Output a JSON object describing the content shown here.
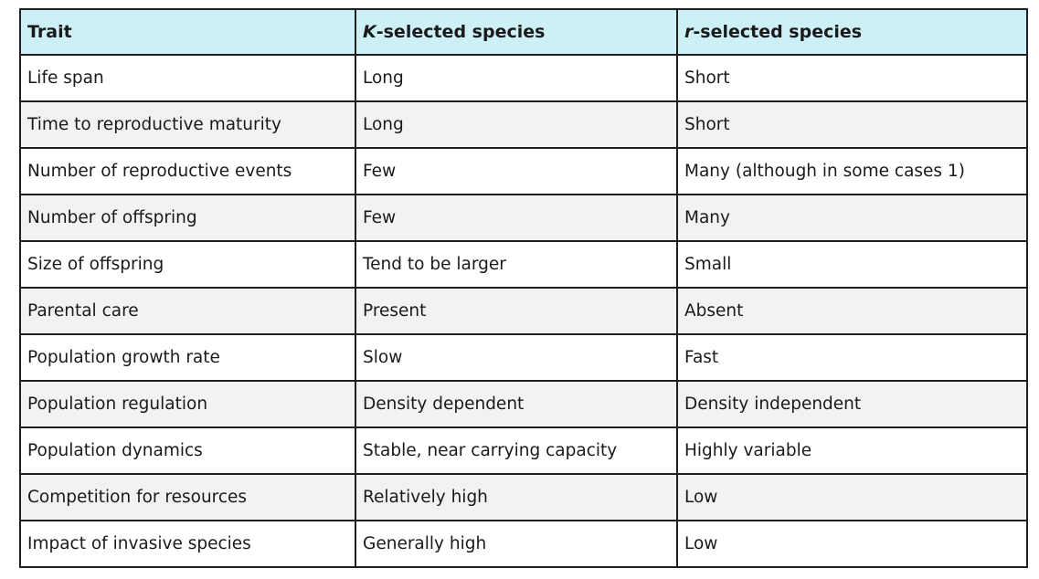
{
  "table": {
    "headers": {
      "trait": "Trait",
      "k_letter": "K",
      "k_rest": "-selected species",
      "r_letter": "r",
      "r_rest": "-selected species"
    },
    "rows": [
      {
        "trait": "Life span",
        "k": "Long",
        "r": "Short"
      },
      {
        "trait": "Time to reproductive maturity",
        "k": "Long",
        "r": "Short"
      },
      {
        "trait": "Number of reproductive events",
        "k": "Few",
        "r": "Many (although in some cases 1)"
      },
      {
        "trait": "Number of offspring",
        "k": "Few",
        "r": "Many"
      },
      {
        "trait": "Size of offspring",
        "k": "Tend to be larger",
        "r": "Small"
      },
      {
        "trait": "Parental care",
        "k": "Present",
        "r": "Absent"
      },
      {
        "trait": "Population growth rate",
        "k": "Slow",
        "r": "Fast"
      },
      {
        "trait": "Population regulation",
        "k": "Density dependent",
        "r": "Density independent"
      },
      {
        "trait": "Population dynamics",
        "k": "Stable, near carrying capacity",
        "r": "Highly variable"
      },
      {
        "trait": "Competition for resources",
        "k": "Relatively high",
        "r": "Low"
      },
      {
        "trait": "Impact of invasive species",
        "k": "Generally high",
        "r": "Low"
      }
    ]
  }
}
